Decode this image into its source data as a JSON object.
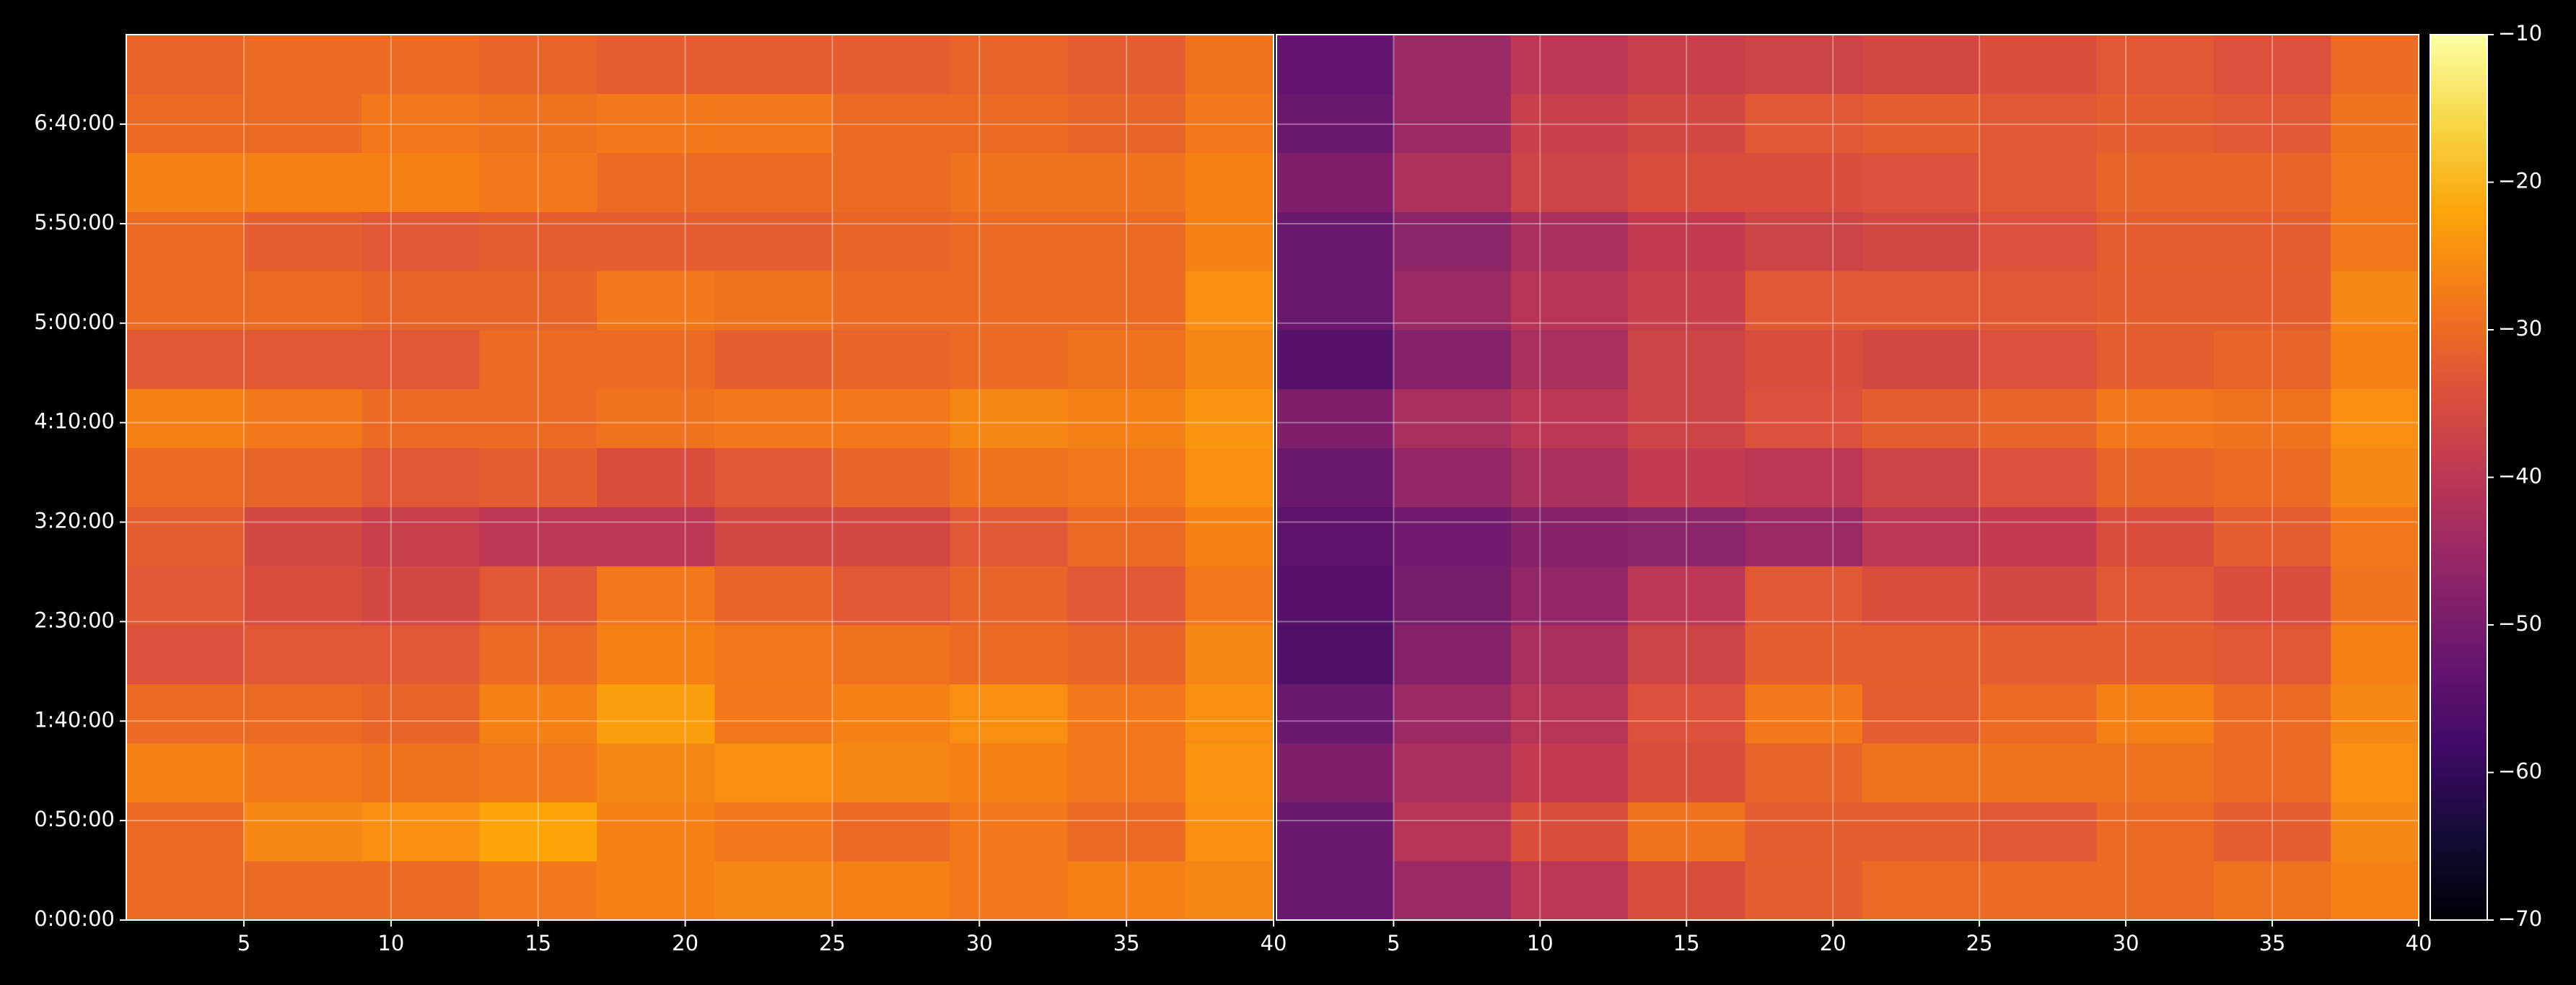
{
  "chart_data": [
    {
      "type": "heatmap",
      "x_bins": [
        1,
        5,
        9,
        13,
        17,
        21,
        25,
        29,
        33,
        37,
        40
      ],
      "y_bins": [
        0,
        1780,
        3560,
        5340,
        7120,
        8900,
        10680,
        12460,
        14240,
        16020,
        17800,
        19580,
        21360,
        23140,
        24920,
        26700
      ],
      "values": [
        [
          -30,
          -30,
          -30,
          -28,
          -27,
          -26,
          -27,
          -28,
          -27,
          -26
        ],
        [
          -30,
          -26,
          -25,
          -22,
          -27,
          -28,
          -30,
          -28,
          -30,
          -25
        ],
        [
          -27,
          -28,
          -29,
          -28,
          -26,
          -25,
          -26,
          -27,
          -28,
          -24
        ],
        [
          -30,
          -30,
          -31,
          -27,
          -23,
          -28,
          -27,
          -25,
          -28,
          -25
        ],
        [
          -34,
          -33,
          -33,
          -30,
          -27,
          -28,
          -29,
          -30,
          -31,
          -26
        ],
        [
          -33,
          -35,
          -36,
          -33,
          -28,
          -31,
          -33,
          -31,
          -33,
          -28
        ],
        [
          -32,
          -36,
          -38,
          -40,
          -40,
          -36,
          -36,
          -33,
          -30,
          -27
        ],
        [
          -30,
          -31,
          -33,
          -32,
          -35,
          -33,
          -31,
          -29,
          -28,
          -25
        ],
        [
          -27,
          -28,
          -30,
          -30,
          -29,
          -28,
          -28,
          -26,
          -27,
          -24
        ],
        [
          -33,
          -33,
          -33,
          -30,
          -30,
          -32,
          -31,
          -30,
          -29,
          -26
        ],
        [
          -30,
          -30,
          -31,
          -31,
          -28,
          -29,
          -30,
          -30,
          -30,
          -25
        ],
        [
          -30,
          -32,
          -33,
          -32,
          -32,
          -32,
          -31,
          -30,
          -30,
          -27
        ],
        [
          -27,
          -27,
          -27,
          -28,
          -30,
          -30,
          -30,
          -29,
          -29,
          -27
        ],
        [
          -30,
          -30,
          -28,
          -29,
          -28,
          -28,
          -30,
          -30,
          -31,
          -28
        ],
        [
          -31,
          -30,
          -30,
          -31,
          -32,
          -32,
          -32,
          -31,
          -32,
          -29
        ]
      ],
      "xlim": [
        1,
        40
      ],
      "xticks": [
        5,
        10,
        15,
        20,
        25,
        30,
        35,
        40
      ],
      "ylim": [
        0,
        26700
      ],
      "yticks": [
        {
          "value": 0,
          "label": "0:00:00"
        },
        {
          "value": 3000,
          "label": "0:50:00"
        },
        {
          "value": 6000,
          "label": "1:40:00"
        },
        {
          "value": 9000,
          "label": "2:30:00"
        },
        {
          "value": 12000,
          "label": "3:20:00"
        },
        {
          "value": 15000,
          "label": "4:10:00"
        },
        {
          "value": 18000,
          "label": "5:00:00"
        },
        {
          "value": 21000,
          "label": "5:50:00"
        },
        {
          "value": 24000,
          "label": "6:40:00"
        }
      ],
      "grid": true
    },
    {
      "type": "heatmap",
      "x_bins": [
        1,
        5,
        9,
        13,
        17,
        21,
        25,
        29,
        33,
        37,
        40
      ],
      "y_bins": [
        0,
        1780,
        3560,
        5340,
        7120,
        8900,
        10680,
        12460,
        14240,
        16020,
        17800,
        19580,
        21360,
        23140,
        24920,
        26700
      ],
      "values": [
        [
          -52,
          -45,
          -40,
          -35,
          -32,
          -30,
          -30,
          -30,
          -29,
          -27
        ],
        [
          -52,
          -41,
          -35,
          -29,
          -32,
          -32,
          -33,
          -30,
          -32,
          -26
        ],
        [
          -49,
          -43,
          -39,
          -35,
          -31,
          -29,
          -29,
          -29,
          -30,
          -25
        ],
        [
          -52,
          -45,
          -41,
          -34,
          -28,
          -32,
          -30,
          -27,
          -30,
          -26
        ],
        [
          -56,
          -48,
          -43,
          -37,
          -32,
          -32,
          -32,
          -32,
          -33,
          -27
        ],
        [
          -55,
          -50,
          -46,
          -40,
          -33,
          -35,
          -36,
          -33,
          -35,
          -29
        ],
        [
          -54,
          -51,
          -48,
          -47,
          -45,
          -40,
          -39,
          -35,
          -32,
          -28
        ],
        [
          -52,
          -46,
          -43,
          -39,
          -40,
          -37,
          -34,
          -31,
          -30,
          -26
        ],
        [
          -49,
          -43,
          -40,
          -37,
          -34,
          -32,
          -31,
          -28,
          -29,
          -25
        ],
        [
          -55,
          -48,
          -43,
          -37,
          -35,
          -36,
          -34,
          -32,
          -31,
          -27
        ],
        [
          -52,
          -45,
          -41,
          -38,
          -33,
          -33,
          -33,
          -32,
          -32,
          -26
        ],
        [
          -52,
          -47,
          -43,
          -39,
          -37,
          -36,
          -34,
          -32,
          -32,
          -28
        ],
        [
          -49,
          -42,
          -37,
          -35,
          -35,
          -34,
          -33,
          -31,
          -31,
          -28
        ],
        [
          -52,
          -45,
          -38,
          -36,
          -33,
          -32,
          -33,
          -32,
          -33,
          -29
        ],
        [
          -53,
          -45,
          -40,
          -38,
          -37,
          -36,
          -35,
          -33,
          -34,
          -30
        ]
      ],
      "xlim": [
        1,
        40
      ],
      "xticks": [
        5,
        10,
        15,
        20,
        25,
        30,
        35,
        40
      ],
      "ylim": [
        0,
        26700
      ],
      "grid": true
    },
    {
      "type": "colorbar",
      "colormap": "inferno",
      "clim": [
        -70,
        -10
      ],
      "ticks": [
        {
          "value": -70,
          "label": "−70"
        },
        {
          "value": -60,
          "label": "−60"
        },
        {
          "value": -50,
          "label": "−50"
        },
        {
          "value": -40,
          "label": "−40"
        },
        {
          "value": -30,
          "label": "−30"
        },
        {
          "value": -20,
          "label": "−20"
        },
        {
          "value": -10,
          "label": "−10"
        }
      ]
    }
  ]
}
